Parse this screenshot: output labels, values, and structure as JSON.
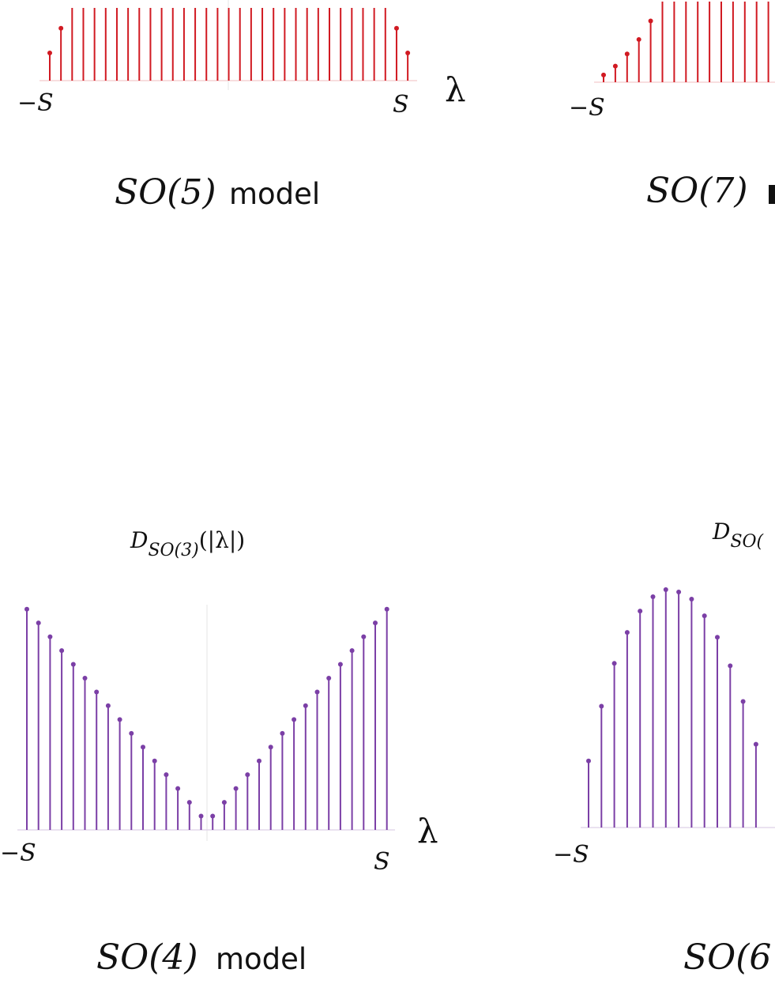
{
  "chart_data": [
    {
      "type": "bar",
      "style": "stem",
      "title": "",
      "caption_group": "SO(5)",
      "caption_word": "model",
      "xlabel": "λ",
      "tick_labels": [
        "−S",
        "S"
      ],
      "color": "#d11a22",
      "values": [
        0.38,
        0.72,
        1.0,
        1.0,
        1.0,
        1.0,
        1.0,
        1.0,
        1.0,
        1.0,
        1.0,
        1.0,
        1.0,
        1.0,
        1.0,
        1.0,
        1.0,
        1.0,
        1.0,
        1.0,
        1.0,
        1.0,
        1.0,
        1.0,
        1.0,
        1.0,
        1.0,
        1.0,
        1.0,
        1.0,
        1.0,
        0.72,
        0.38
      ],
      "ylim": [
        0,
        1.0
      ],
      "clipped_top": true
    },
    {
      "type": "bar",
      "style": "stem",
      "title": "",
      "caption_group": "SO(7)",
      "caption_word": "",
      "xlabel": "",
      "tick_labels": [
        "−S"
      ],
      "color": "#d11a22",
      "values": [
        0.09,
        0.2,
        0.35,
        0.53,
        0.76,
        1.0,
        1.0,
        1.0,
        1.0,
        1.0,
        1.0,
        1.0,
        1.0,
        1.0,
        1.0,
        1.0,
        1.0,
        1.0
      ],
      "ylim": [
        0,
        1.0
      ],
      "clipped_top": true,
      "clipped_right": true
    },
    {
      "type": "bar",
      "style": "stem",
      "title_base": "D",
      "title_sub": "SO(3)",
      "title_arg": "(|λ|)",
      "caption_group": "SO(4)",
      "caption_word": "model",
      "xlabel": "λ",
      "tick_labels": [
        "−S",
        "S"
      ],
      "color": "#7b3fa6",
      "values": [
        16,
        15,
        14,
        13,
        12,
        11,
        10,
        9,
        8,
        7,
        6,
        5,
        4,
        3,
        2,
        1,
        1,
        2,
        3,
        4,
        5,
        6,
        7,
        8,
        9,
        10,
        11,
        12,
        13,
        14,
        15,
        16
      ],
      "ylim": [
        0,
        16.5
      ]
    },
    {
      "type": "bar",
      "style": "stem",
      "title_base": "D",
      "title_sub": "SO(",
      "title_arg": "",
      "caption_group": "SO(6",
      "caption_word": "",
      "xlabel": "",
      "tick_labels": [
        "−S"
      ],
      "color": "#7b3fa6",
      "values": [
        0.28,
        0.51,
        0.69,
        0.82,
        0.91,
        0.97,
        1.0,
        0.99,
        0.96,
        0.89,
        0.8,
        0.68,
        0.53,
        0.35
      ],
      "ylim": [
        0,
        1.0
      ],
      "clipped_right": true
    }
  ]
}
